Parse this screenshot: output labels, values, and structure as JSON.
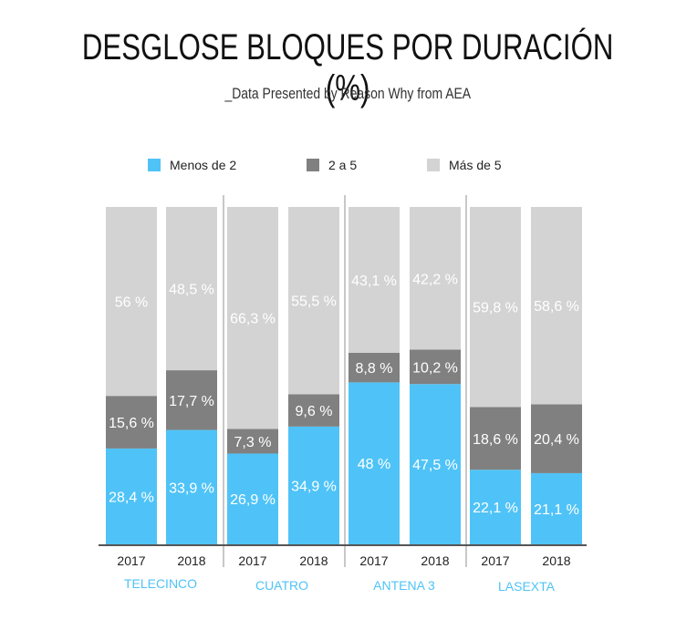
{
  "title": "DESGLOSE BLOQUES POR DURACIÓN (%)",
  "subtitle": "_Data Presented by Reason Why from AEA",
  "colors": {
    "menos_de_2": "#4FC3F7",
    "2_a_5": "#808080",
    "mas_de_5": "#D3D3D3",
    "group_label": "#4FC3F7",
    "value_label": "#ffffff",
    "axis": "#555555",
    "separator": "#c8c8c8"
  },
  "chart_data": {
    "type": "bar",
    "stacked": true,
    "legend_position": "top",
    "ylim": [
      0,
      100
    ],
    "groups": [
      "TELECINCO",
      "CUATRO",
      "ANTENA 3",
      "LASEXTA"
    ],
    "categories": [
      "2017",
      "2018",
      "2017",
      "2018",
      "2017",
      "2018",
      "2017",
      "2018"
    ],
    "series": [
      {
        "name": "Menos de 2",
        "values": [
          28.4,
          33.9,
          26.9,
          34.9,
          48,
          47.5,
          22.1,
          21.1
        ],
        "labels": [
          "28,4 %",
          "33,9 %",
          "26,9 %",
          "34,9 %",
          "48 %",
          "47,5 %",
          "22,1 %",
          "21,1 %"
        ]
      },
      {
        "name": "2 a 5",
        "values": [
          15.6,
          17.7,
          7.3,
          9.6,
          8.8,
          10.2,
          18.6,
          20.4
        ],
        "labels": [
          "15,6 %",
          "17,7 %",
          "7,3 %",
          "9,6 %",
          "8,8 %",
          "10,2 %",
          "18,6 %",
          "20,4 %"
        ]
      },
      {
        "name": "Más de 5",
        "values": [
          56,
          48.5,
          66.3,
          55.5,
          43.1,
          42.2,
          59.8,
          58.6
        ],
        "labels": [
          "56 %",
          "48,5 %",
          "66,3 %",
          "55,5 %",
          "43,1 %",
          "42,2 %",
          "59,8 %",
          "58,6 %"
        ]
      }
    ]
  }
}
